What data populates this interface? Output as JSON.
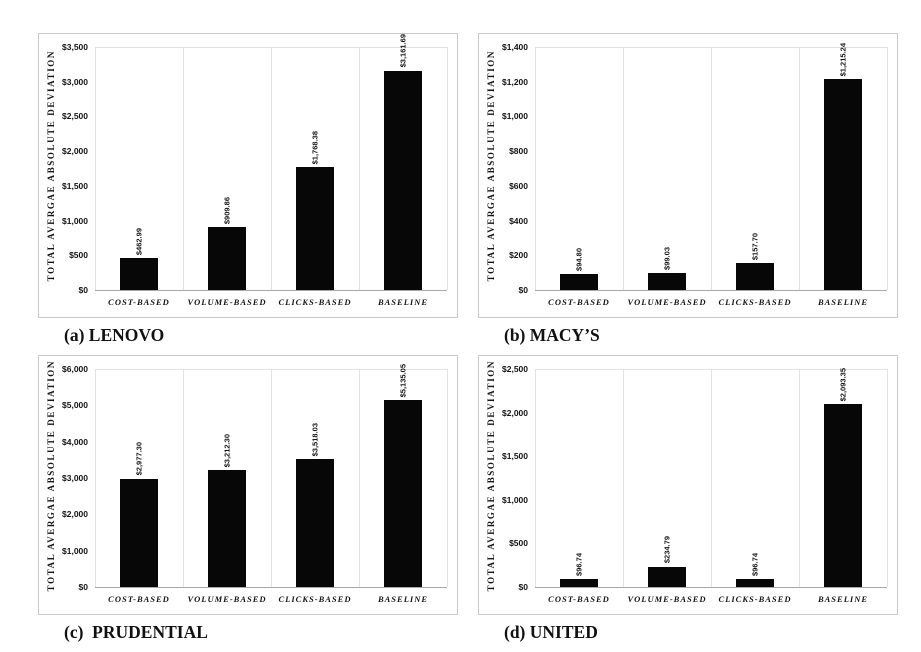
{
  "figure": {
    "background": "#ffffff",
    "colors": {
      "bar": "#070707",
      "panel_border": "#c9c9c9",
      "gridline": "#e1e1e1",
      "axis_line": "#a8a8a8",
      "text": "#141414"
    },
    "y_axis_title": "TOTAL AVERGAE ABSOLUTE DEVIATION",
    "categories": [
      "COST-BASED",
      "VOLUME-BASED",
      "CLICKS-BASED",
      "BASELINE"
    ]
  },
  "chart_data": [
    {
      "type": "bar",
      "id": "lenovo",
      "caption": "(a) LENOVO",
      "title": "",
      "xlabel": "",
      "ylabel": "TOTAL AVERGAE ABSOLUTE DEVIATION",
      "categories": [
        "COST-BASED",
        "VOLUME-BASED",
        "CLICKS-BASED",
        "BASELINE"
      ],
      "values": [
        462.99,
        909.86,
        1768.38,
        3161.69
      ],
      "value_labels": [
        "$462.99",
        "$909.86",
        "$1,768.38",
        "$3,161.69"
      ],
      "ylim": [
        0,
        3500
      ],
      "yticks": [
        "$3,500",
        "$3,000",
        "$2,500",
        "$2,000",
        "$1,500",
        "$1,000",
        "$500",
        "$0"
      ],
      "grid": "vertical category separators",
      "legend": "none"
    },
    {
      "type": "bar",
      "id": "macys",
      "caption": "(b) MACY’S",
      "title": "",
      "xlabel": "",
      "ylabel": "TOTAL AVERGAE ABSOLUTE DEVIATION",
      "categories": [
        "COST-BASED",
        "VOLUME-BASED",
        "CLICKS-BASED",
        "BASELINE"
      ],
      "values": [
        94.8,
        99.03,
        157.7,
        1215.24
      ],
      "value_labels": [
        "$94.80",
        "$99.03",
        "$157.70",
        "$1,215.24"
      ],
      "ylim": [
        0,
        1400
      ],
      "yticks": [
        "$1,400",
        "$1,200",
        "$1,000",
        "$800",
        "$600",
        "$400",
        "$200",
        "$0"
      ],
      "grid": "vertical category separators",
      "legend": "none"
    },
    {
      "type": "bar",
      "id": "prudential",
      "caption": "(c)  PRUDENTIAL",
      "title": "",
      "xlabel": "",
      "ylabel": "TOTAL AVERGAE ABSOLUTE DEVIATION",
      "categories": [
        "COST-BASED",
        "VOLUME-BASED",
        "CLICKS-BASED",
        "BASELINE"
      ],
      "values": [
        2977.3,
        3212.3,
        3518.03,
        5135.05
      ],
      "value_labels": [
        "$2,977.30",
        "$3,212.30",
        "$3,518.03",
        "$5,135.05"
      ],
      "ylim": [
        0,
        6000
      ],
      "yticks": [
        "$6,000",
        "$5,000",
        "$4,000",
        "$3,000",
        "$2,000",
        "$1,000",
        "$0"
      ],
      "grid": "vertical category separators",
      "legend": "none"
    },
    {
      "type": "bar",
      "id": "united",
      "caption": "(d) UNITED",
      "title": "",
      "xlabel": "",
      "ylabel": "TOTAL AVERGAE ABSOLUTE DEVIATION",
      "categories": [
        "COST-BASED",
        "VOLUME-BASED",
        "CLICKS-BASED",
        "BASELINE"
      ],
      "values": [
        96.74,
        234.79,
        96.74,
        2093.35
      ],
      "value_labels": [
        "$96.74",
        "$234.79",
        "$96.74",
        "$2,093.35"
      ],
      "ylim": [
        0,
        2500
      ],
      "yticks": [
        "$2,500",
        "$2,000",
        "$1,500",
        "$1,000",
        "$500",
        "$0"
      ],
      "grid": "vertical category separators",
      "legend": "none"
    }
  ]
}
